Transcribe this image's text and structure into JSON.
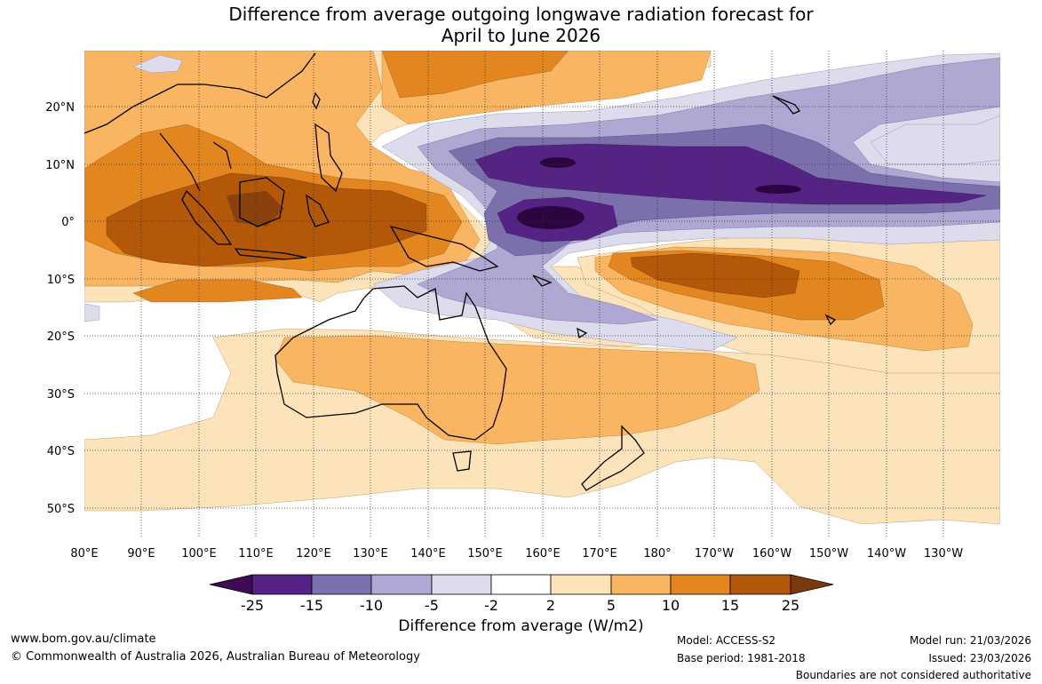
{
  "title": {
    "line1": "Difference from average outgoing longwave radiation forecast for",
    "line2": "April to June 2026"
  },
  "map": {
    "lat_labels": [
      "20°N",
      "10°N",
      "0°",
      "10°S",
      "20°S",
      "30°S",
      "40°S",
      "50°S"
    ],
    "lon_labels": [
      "80°E",
      "90°E",
      "100°E",
      "110°E",
      "120°E",
      "130°E",
      "140°E",
      "150°E",
      "160°E",
      "170°E",
      "180°",
      "170°W",
      "160°W",
      "150°W",
      "140°W",
      "130°W"
    ]
  },
  "colorbar": {
    "ticks": [
      "-25",
      "-15",
      "-10",
      "-5",
      "-2",
      "2",
      "5",
      "10",
      "15",
      "25"
    ],
    "colors": [
      "#3f0b52",
      "#542384",
      "#7b6fac",
      "#aea8d2",
      "#dcdcec",
      "#ffffff",
      "#fde3ba",
      "#f9b561",
      "#e3861f",
      "#b35709",
      "#7a3a0a"
    ],
    "title": "Difference from average (W/m2)"
  },
  "footer": {
    "website": "www.bom.gov.au/climate",
    "copyright": "© Commonwealth of Australia 2026, Australian Bureau of Meteorology",
    "model": "Model: ACCESS-S2",
    "base_period": "Base period: 1981-2018",
    "model_run": "Model run: 21/03/2026",
    "issued": "Issued: 23/03/2026",
    "disclaimer": "Boundaries are not considered authoritative"
  }
}
